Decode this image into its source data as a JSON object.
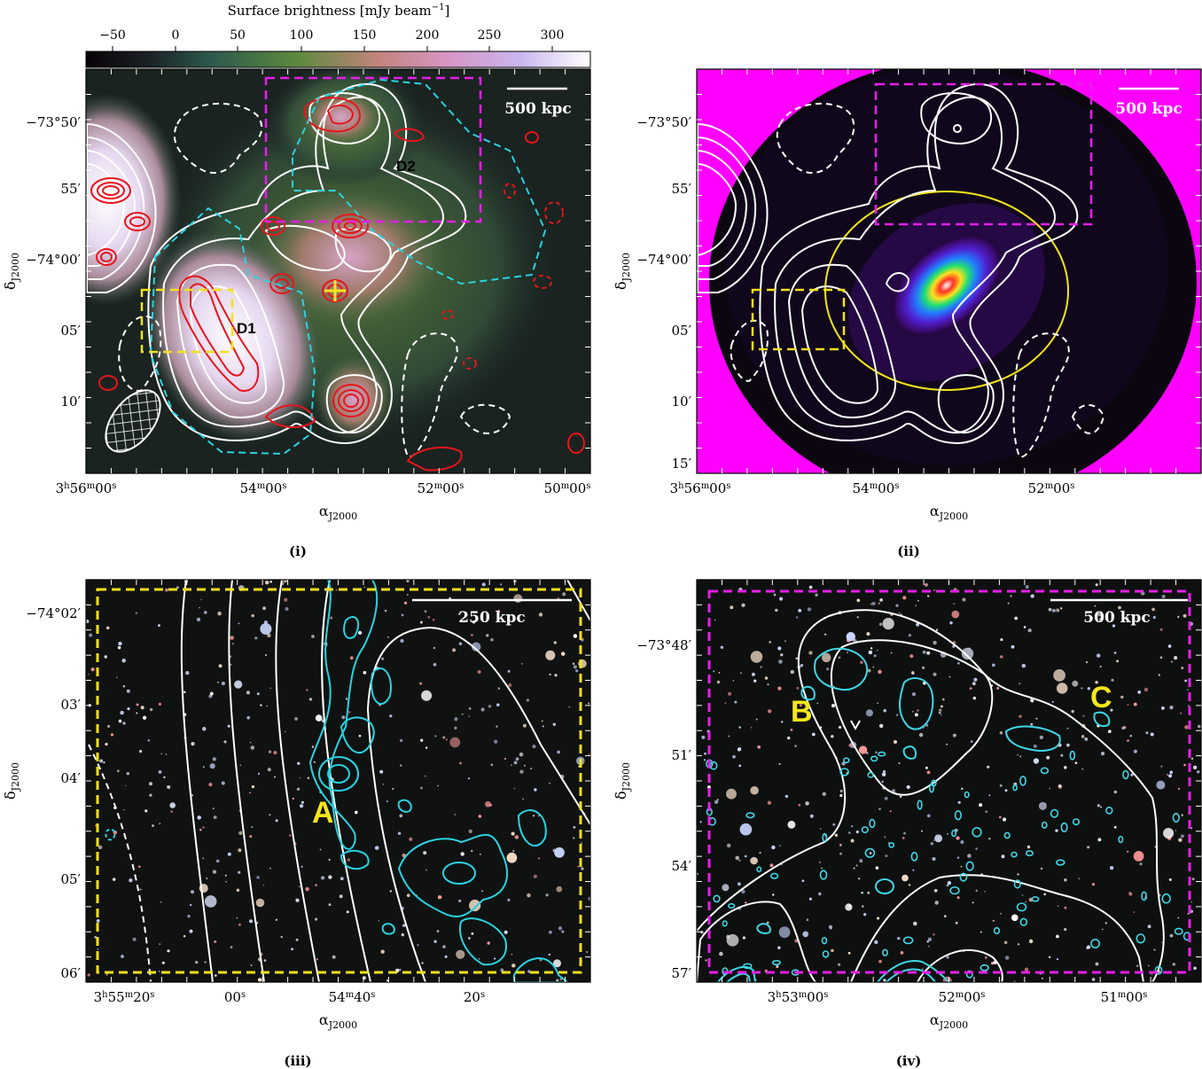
{
  "colorbar": {
    "title": "Surface brightness [mJy beam",
    "title_exp": "−1",
    "title_close": "]",
    "ticks": [
      "−50",
      "0",
      "50",
      "100",
      "150",
      "200",
      "250",
      "300"
    ]
  },
  "panels": [
    {
      "id": "i",
      "caption": "(i)",
      "scalebar": "500 kpc",
      "labels": [
        "D1",
        "D2"
      ],
      "ra_ticks": [
        "3h56m00s",
        "54m00s",
        "52m00s",
        "50m00s"
      ],
      "dec_ticks": [
        "−73°50′",
        "55′",
        "−74°00′",
        "05′",
        "10′"
      ],
      "xlabel": "αJ2000",
      "ylabel": "δJ2000"
    },
    {
      "id": "ii",
      "caption": "(ii)",
      "scalebar": "500 kpc",
      "ra_ticks": [
        "3h56m00s",
        "54m00s",
        "52m00s",
        "50m00s"
      ],
      "dec_ticks": [
        "−73°50′",
        "55′",
        "−74°00′",
        "05′",
        "10′",
        "15′"
      ],
      "xlabel": "αJ2000",
      "ylabel": "δJ2000"
    },
    {
      "id": "iii",
      "caption": "(iii)",
      "scalebar": "250 kpc",
      "labels": [
        "A"
      ],
      "ra_ticks": [
        "3h55m20s",
        "00s",
        "54m40s",
        "20s"
      ],
      "dec_ticks": [
        "−74°02′",
        "03′",
        "04′",
        "05′",
        "06′"
      ],
      "xlabel": "αJ2000",
      "ylabel": "δJ2000"
    },
    {
      "id": "iv",
      "caption": "(iv)",
      "scalebar": "500 kpc",
      "labels": [
        "B",
        "C"
      ],
      "ra_ticks": [
        "3h53m00s",
        "52m00s",
        "51m00s"
      ],
      "dec_ticks": [
        "−73°48′",
        "51′",
        "54′",
        "57′"
      ],
      "xlabel": "αJ2000",
      "ylabel": "δJ2000"
    }
  ],
  "colors": {
    "radio_contour": "#ffffff",
    "compact_contour": "#e8141c",
    "xray_contour": "#2ad3e0",
    "optical_contour": "#3fd7e6",
    "box_yellow": "#f4e01c",
    "box_magenta": "#e81ee8",
    "label_yellow": "#f6e61a",
    "background_magenta": "#ff00ff"
  }
}
